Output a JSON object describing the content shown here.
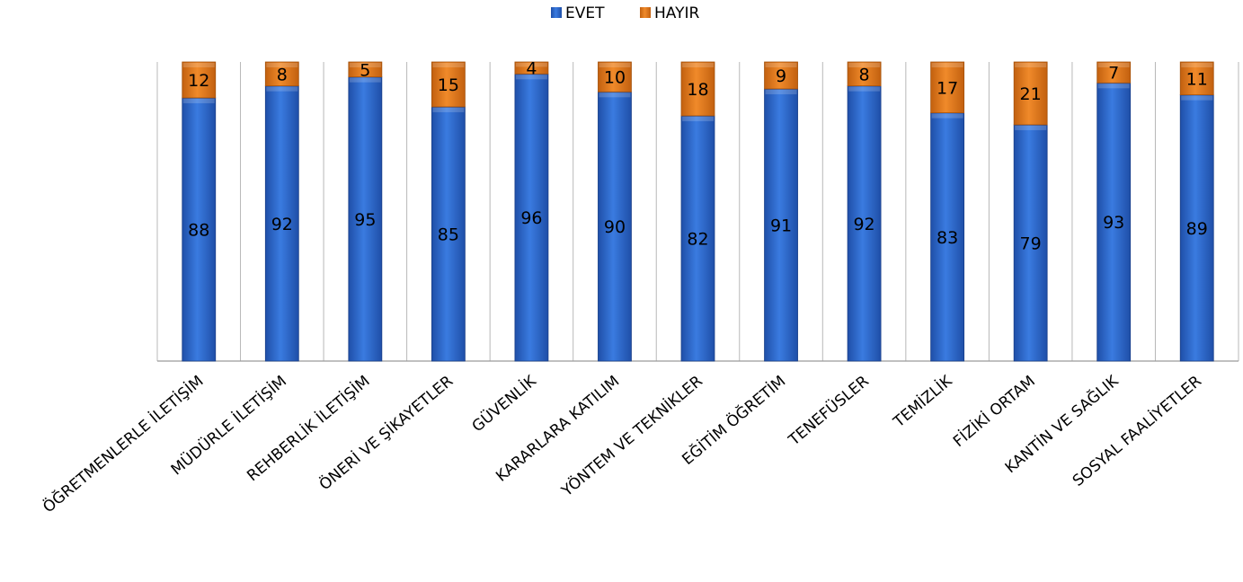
{
  "chart_data": {
    "type": "bar",
    "stacked": true,
    "legend": "top-center",
    "grid": "vertical-category-separators",
    "ylim": [
      0,
      100
    ],
    "categories": [
      "ÖĞRETMENLERLE İLETİŞİM",
      "MÜDÜRLE İLETİŞİM",
      "REHBERLİK İLETİŞİM",
      "ÖNERİ VE ŞİKAYETLER",
      "GÜVENLİK",
      "KARARLARA KATILIM",
      "YÖNTEM VE TEKNİKLER",
      "EĞİTİM ÖĞRETİM",
      "TENEFÜSLER",
      "TEMİZLİK",
      "FİZİKİ ORTAM",
      "KANTİN VE SAĞLIK",
      "SOSYAL FAALİYETLER"
    ],
    "series": [
      {
        "name": "EVET",
        "color": "#2f6fd6",
        "values": [
          88,
          92,
          95,
          85,
          96,
          90,
          82,
          91,
          92,
          83,
          79,
          93,
          89
        ]
      },
      {
        "name": "HAYIR",
        "color": "#e8801f",
        "values": [
          12,
          8,
          5,
          15,
          4,
          10,
          18,
          9,
          8,
          17,
          21,
          7,
          11
        ]
      }
    ]
  }
}
